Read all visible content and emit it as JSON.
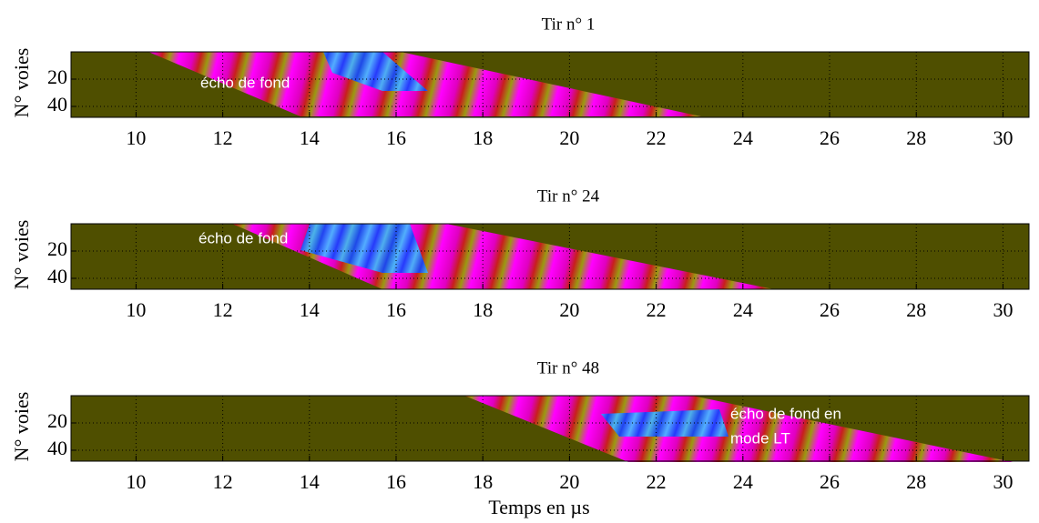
{
  "chart_data": [
    {
      "type": "heatmap",
      "title": "Tir n° 1",
      "ylabel": "N° voies",
      "xlim": [
        8.5,
        30.6
      ],
      "ylim": [
        0,
        48
      ],
      "xticks": [
        10,
        12,
        14,
        16,
        18,
        20,
        22,
        24,
        26,
        28,
        30
      ],
      "yticks": [
        20,
        40
      ],
      "grid": true,
      "background": "#4f4f00",
      "annotations": [
        "écho de fond"
      ]
    },
    {
      "type": "heatmap",
      "title": "Tir n° 24",
      "ylabel": "N° voies",
      "xlim": [
        8.5,
        30.6
      ],
      "ylim": [
        0,
        48
      ],
      "xticks": [
        10,
        12,
        14,
        16,
        18,
        20,
        22,
        24,
        26,
        28,
        30
      ],
      "yticks": [
        20,
        40
      ],
      "grid": true,
      "background": "#4f4f00",
      "annotations": [
        "écho de fond"
      ]
    },
    {
      "type": "heatmap",
      "title": "Tir n° 48",
      "ylabel": "N° voies",
      "xlabel": "Temps en µs",
      "xlim": [
        8.5,
        30.6
      ],
      "ylim": [
        0,
        48
      ],
      "xticks": [
        10,
        12,
        14,
        16,
        18,
        20,
        22,
        24,
        26,
        28,
        30
      ],
      "yticks": [
        20,
        40
      ],
      "grid": true,
      "background": "#4f4f00",
      "annotations": [
        "écho de fond en",
        "mode LT"
      ]
    }
  ]
}
